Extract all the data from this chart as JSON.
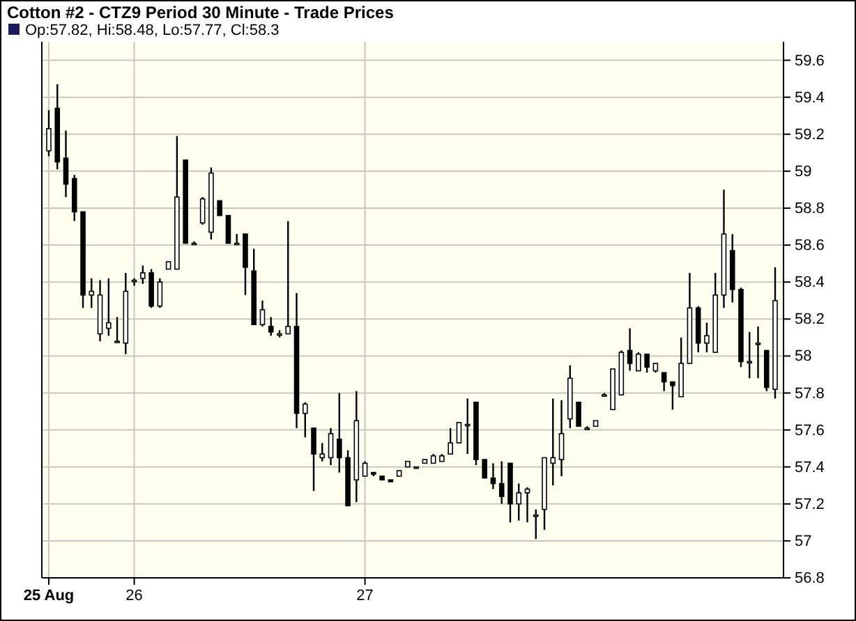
{
  "chart_data": {
    "type": "candlestick",
    "title": "Cotton #2 - CTZ9 Period 30 Minute - Trade Prices",
    "subtitle": "Op:57.82, Hi:58.48, Lo:57.77, Cl:58.3",
    "categories": [
      "25 Aug",
      null,
      null,
      null,
      null,
      null,
      null,
      null,
      null,
      null,
      "26",
      null,
      null,
      null,
      null,
      null,
      null,
      null,
      null,
      null,
      null,
      null,
      null,
      null,
      null,
      null,
      null,
      null,
      null,
      null,
      null,
      null,
      null,
      null,
      null,
      null,
      null,
      "27",
      null,
      null,
      null,
      null,
      null,
      null,
      null,
      null,
      null,
      null,
      null,
      null,
      null,
      null,
      null,
      null,
      null,
      null,
      null,
      null,
      null,
      null,
      null,
      null,
      null,
      null,
      null,
      null,
      null,
      null,
      null,
      null,
      null,
      null,
      null,
      null,
      null,
      null,
      null,
      null,
      null,
      null,
      null,
      null,
      null,
      null,
      null,
      null
    ],
    "series": [
      {
        "color": "#000000",
        "ohlc": [
          [
            59.11,
            59.33,
            59.08,
            59.23
          ],
          [
            59.34,
            59.47,
            59.01,
            59.05
          ],
          [
            59.07,
            59.22,
            58.86,
            58.93
          ],
          [
            58.96,
            58.98,
            58.73,
            58.78
          ],
          [
            58.78,
            58.78,
            58.26,
            58.33
          ],
          [
            58.33,
            58.42,
            58.26,
            58.35
          ],
          [
            58.12,
            58.41,
            58.08,
            58.33
          ],
          [
            58.15,
            58.42,
            58.11,
            58.18
          ],
          [
            58.08,
            58.21,
            58.07,
            58.08
          ],
          [
            58.07,
            58.45,
            58.01,
            58.35
          ],
          [
            58.41,
            58.42,
            58.38,
            58.41
          ],
          [
            58.42,
            58.49,
            58.39,
            58.45
          ],
          [
            58.45,
            58.47,
            58.26,
            58.27
          ],
          [
            58.27,
            58.42,
            58.26,
            58.4
          ],
          [
            58.47,
            58.51,
            58.47,
            58.51
          ],
          [
            58.47,
            59.19,
            58.47,
            58.86
          ],
          [
            59.06,
            59.06,
            58.61,
            58.61
          ],
          [
            58.61,
            58.62,
            58.6,
            58.61
          ],
          [
            58.72,
            58.86,
            58.71,
            58.85
          ],
          [
            58.67,
            59.02,
            58.63,
            58.99
          ],
          [
            58.84,
            58.84,
            58.76,
            58.76
          ],
          [
            58.76,
            58.76,
            58.61,
            58.61
          ],
          [
            58.61,
            58.66,
            58.61,
            58.61
          ],
          [
            58.66,
            58.66,
            58.33,
            58.48
          ],
          [
            58.46,
            58.58,
            58.17,
            58.17
          ],
          [
            58.17,
            58.3,
            58.16,
            58.25
          ],
          [
            58.16,
            58.21,
            58.11,
            58.13
          ],
          [
            58.12,
            58.14,
            58.1,
            58.12
          ],
          [
            58.12,
            58.73,
            58.12,
            58.16
          ],
          [
            58.16,
            58.34,
            57.61,
            57.69
          ],
          [
            57.69,
            57.75,
            57.56,
            57.74
          ],
          [
            57.61,
            57.61,
            57.27,
            57.47
          ],
          [
            57.45,
            57.53,
            57.43,
            57.47
          ],
          [
            57.45,
            57.61,
            57.41,
            57.58
          ],
          [
            57.55,
            57.8,
            57.37,
            57.45
          ],
          [
            57.45,
            57.49,
            57.19,
            57.19
          ],
          [
            57.33,
            57.81,
            57.21,
            57.65
          ],
          [
            57.35,
            57.43,
            57.35,
            57.42
          ],
          [
            57.37,
            57.37,
            57.35,
            57.36
          ],
          [
            57.35,
            57.35,
            57.33,
            57.33
          ],
          [
            57.33,
            57.33,
            57.32,
            57.32
          ],
          [
            57.35,
            57.38,
            57.35,
            57.38
          ],
          [
            57.4,
            57.43,
            57.4,
            57.43
          ],
          [
            57.4,
            57.4,
            57.4,
            57.4
          ],
          [
            57.42,
            57.44,
            57.42,
            57.44
          ],
          [
            57.42,
            57.47,
            57.42,
            57.46
          ],
          [
            57.43,
            57.47,
            57.43,
            57.46
          ],
          [
            57.47,
            57.61,
            57.47,
            57.53
          ],
          [
            57.53,
            57.64,
            57.53,
            57.64
          ],
          [
            57.63,
            57.77,
            57.47,
            57.63
          ],
          [
            57.75,
            57.75,
            57.41,
            57.44
          ],
          [
            57.44,
            57.44,
            57.34,
            57.34
          ],
          [
            57.34,
            57.42,
            57.28,
            57.31
          ],
          [
            57.31,
            57.43,
            57.2,
            57.24
          ],
          [
            57.42,
            57.42,
            57.1,
            57.2
          ],
          [
            57.2,
            57.31,
            57.11,
            57.26
          ],
          [
            57.26,
            57.29,
            57.1,
            57.28
          ],
          [
            57.14,
            57.17,
            57.01,
            57.14
          ],
          [
            57.17,
            57.45,
            57.06,
            57.45
          ],
          [
            57.42,
            57.77,
            57.3,
            57.45
          ],
          [
            57.44,
            57.76,
            57.35,
            57.58
          ],
          [
            57.66,
            57.95,
            57.61,
            57.88
          ],
          [
            57.75,
            57.75,
            57.62,
            57.62
          ],
          [
            57.61,
            57.62,
            57.6,
            57.61
          ],
          [
            57.62,
            57.65,
            57.62,
            57.65
          ],
          [
            57.79,
            57.8,
            57.78,
            57.79
          ],
          [
            57.71,
            57.93,
            57.71,
            57.93
          ],
          [
            57.79,
            58.03,
            57.79,
            58.02
          ],
          [
            58.03,
            58.15,
            57.92,
            57.96
          ],
          [
            57.92,
            58.02,
            57.92,
            58.01
          ],
          [
            58.01,
            58.01,
            57.91,
            57.94
          ],
          [
            57.92,
            57.96,
            57.91,
            57.96
          ],
          [
            57.91,
            57.91,
            57.81,
            57.86
          ],
          [
            57.86,
            57.86,
            57.71,
            57.84
          ],
          [
            57.78,
            58.1,
            57.78,
            57.96
          ],
          [
            57.96,
            58.45,
            57.96,
            58.26
          ],
          [
            58.26,
            58.27,
            58.02,
            58.07
          ],
          [
            58.07,
            58.18,
            58.02,
            58.11
          ],
          [
            58.02,
            58.45,
            58.02,
            58.33
          ],
          [
            58.33,
            58.9,
            58.26,
            58.66
          ],
          [
            58.57,
            58.66,
            58.29,
            58.36
          ],
          [
            58.36,
            58.37,
            57.94,
            57.97
          ],
          [
            57.97,
            58.13,
            57.88,
            57.97
          ],
          [
            58.07,
            58.16,
            57.88,
            58.07
          ],
          [
            58.03,
            58.03,
            57.81,
            57.83
          ],
          [
            57.82,
            58.48,
            57.77,
            58.3
          ]
        ]
      }
    ],
    "ylim": [
      56.8,
      59.7
    ],
    "yticks": [
      56.8,
      57,
      57.2,
      57.4,
      57.6,
      57.8,
      58,
      58.2,
      58.4,
      58.6,
      58.8,
      59,
      59.2,
      59.4,
      59.6
    ],
    "grid": true
  }
}
